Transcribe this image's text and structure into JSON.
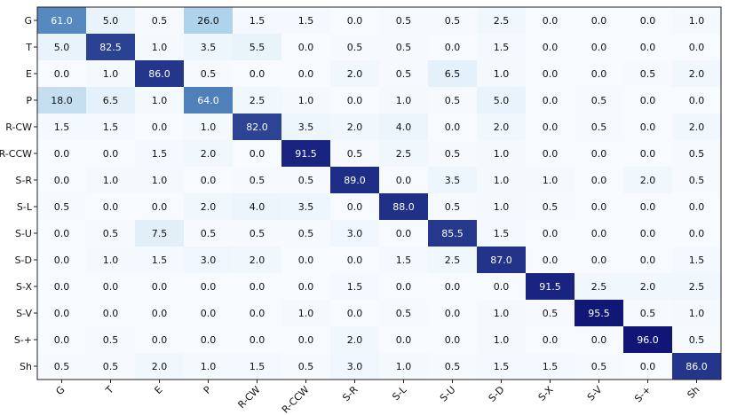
{
  "chart_data": {
    "type": "heatmap",
    "title": "",
    "xlabel": "",
    "ylabel": "",
    "row_labels": [
      "G",
      "T",
      "E",
      "P",
      "R-CW",
      "R-CCW",
      "S-R",
      "S-L",
      "S-U",
      "S-D",
      "S-X",
      "S-V",
      "S-+",
      "Sh"
    ],
    "col_labels": [
      "G",
      "T",
      "E",
      "P",
      "R-CW",
      "R-CCW",
      "S-R",
      "S-L",
      "S-U",
      "S-D",
      "S-X",
      "S-V",
      "S-+",
      "Sh"
    ],
    "values": [
      [
        "61.0",
        "5.0",
        "0.5",
        "26.0",
        "1.5",
        "1.5",
        "0.0",
        "0.5",
        "0.5",
        "2.5",
        "0.0",
        "0.0",
        "0.0",
        "1.0"
      ],
      [
        "5.0",
        "82.5",
        "1.0",
        "3.5",
        "5.5",
        "0.0",
        "0.5",
        "0.5",
        "0.0",
        "1.5",
        "0.0",
        "0.0",
        "0.0",
        "0.0"
      ],
      [
        "0.0",
        "1.0",
        "86.0",
        "0.5",
        "0.0",
        "0.0",
        "2.0",
        "0.5",
        "6.5",
        "1.0",
        "0.0",
        "0.0",
        "0.5",
        "2.0"
      ],
      [
        "18.0",
        "6.5",
        "1.0",
        "64.0",
        "2.5",
        "1.0",
        "0.0",
        "1.0",
        "0.5",
        "5.0",
        "0.0",
        "0.5",
        "0.0",
        "0.0"
      ],
      [
        "1.5",
        "1.5",
        "0.0",
        "1.0",
        "82.0",
        "3.5",
        "2.0",
        "4.0",
        "0.0",
        "2.0",
        "0.0",
        "0.5",
        "0.0",
        "2.0"
      ],
      [
        "0.0",
        "0.0",
        "1.5",
        "2.0",
        "0.0",
        "91.5",
        "0.5",
        "2.5",
        "0.5",
        "1.0",
        "0.0",
        "0.0",
        "0.0",
        "0.5"
      ],
      [
        "0.0",
        "1.0",
        "1.0",
        "0.0",
        "0.5",
        "0.5",
        "89.0",
        "0.0",
        "3.5",
        "1.0",
        "1.0",
        "0.0",
        "2.0",
        "0.5"
      ],
      [
        "0.5",
        "0.0",
        "0.0",
        "2.0",
        "4.0",
        "3.5",
        "0.0",
        "88.0",
        "0.5",
        "1.0",
        "0.5",
        "0.0",
        "0.0",
        "0.0"
      ],
      [
        "0.0",
        "0.5",
        "7.5",
        "0.5",
        "0.5",
        "0.5",
        "3.0",
        "0.0",
        "85.5",
        "1.5",
        "0.0",
        "0.0",
        "0.0",
        "0.0"
      ],
      [
        "0.0",
        "1.0",
        "1.5",
        "3.0",
        "2.0",
        "0.0",
        "0.0",
        "1.5",
        "2.5",
        "87.0",
        "0.0",
        "0.0",
        "0.0",
        "1.5"
      ],
      [
        "0.0",
        "0.0",
        "0.0",
        "0.0",
        "0.0",
        "0.0",
        "1.5",
        "0.0",
        "0.0",
        "0.0",
        "91.5",
        "2.5",
        "2.0",
        "2.5"
      ],
      [
        "0.0",
        "0.0",
        "0.0",
        "0.0",
        "0.0",
        "1.0",
        "0.0",
        "0.5",
        "0.0",
        "1.0",
        "0.5",
        "95.5",
        "0.5",
        "1.0"
      ],
      [
        "0.0",
        "0.5",
        "0.0",
        "0.0",
        "0.0",
        "0.0",
        "2.0",
        "0.0",
        "0.0",
        "1.0",
        "0.0",
        "0.0",
        "96.0",
        "0.5"
      ],
      [
        "0.5",
        "0.5",
        "2.0",
        "1.0",
        "1.5",
        "0.5",
        "3.0",
        "1.0",
        "0.5",
        "1.5",
        "1.5",
        "0.5",
        "0.0",
        "86.0"
      ]
    ],
    "value_range": [
      0,
      100
    ],
    "colormap": {
      "low": "#f7fbff",
      "mid": "#6baed6",
      "high": "#08086e"
    },
    "grid": false,
    "legend": "none"
  }
}
